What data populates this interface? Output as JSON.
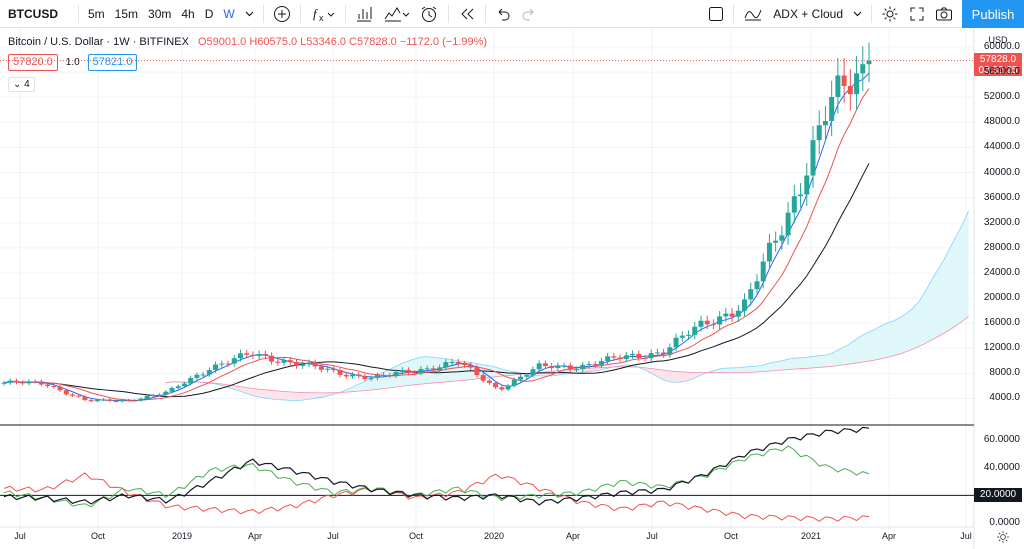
{
  "toolbar": {
    "symbol": "BTCUSD",
    "timeframes": [
      "5m",
      "15m",
      "30m",
      "4h",
      "D",
      "W"
    ],
    "active_timeframe": "W",
    "indicator_template": "ADX + Cloud",
    "publish_label": "Publish"
  },
  "legend": {
    "title": "Bitcoin / U.S. Dollar · 1W · BITFINEX",
    "ohlc": "O59001.0 H60575.0 L53346.0 C57828.0 −1172.0 (−1.99%)",
    "sell_price": "57820.0",
    "spread": "1.0",
    "buy_price": "57821.0",
    "collapsed_indicators": "4"
  },
  "price_axis": {
    "currency": "USD",
    "labels": [
      "60000.0",
      "56000.0",
      "52000.0",
      "48000.0",
      "44000.0",
      "40000.0",
      "36000.0",
      "32000.0",
      "28000.0",
      "24000.0",
      "20000.0",
      "16000.0",
      "12000.0",
      "8000.0",
      "4000.0"
    ],
    "last_price": "57828.0",
    "countdown": "03:32:25"
  },
  "osc_axis": {
    "labels": [
      "60.0000",
      "40.0000",
      "0.0000"
    ],
    "level_tag": "20.0000"
  },
  "time_axis": {
    "labels": [
      "Jul",
      "Oct",
      "2019",
      "Apr",
      "Jul",
      "Oct",
      "2020",
      "Apr",
      "Jul",
      "Oct",
      "2021",
      "Apr",
      "Jul"
    ]
  },
  "colors": {
    "up": "#26a69a",
    "down": "#ef5350",
    "tenkan": "#2962ff",
    "kijun": "#ef5350",
    "slow_ma": "#131722",
    "cloud_bull": "#b2ebf2",
    "cloud_bear": "#f8bbd0",
    "adx": "#131722",
    "di_plus": "#4caf50",
    "di_minus": "#ef5350"
  },
  "chart_data": {
    "type": "line",
    "title": "Bitcoin / U.S. Dollar · 1W · BITFINEX",
    "ylim": [
      0,
      62000
    ],
    "series": [
      {
        "name": "",
        "x": [
          "2018-07",
          "2018-10",
          "2018-12",
          "2019-02",
          "2019-04",
          "2019-06",
          "2019-07",
          "2019-09",
          "2019-10",
          "2019-12",
          "2020-01",
          "2020-02",
          "2020-03",
          "2020-05",
          "2020-07",
          "2020-09",
          "2020-10",
          "2020-11",
          "2020-12",
          "2021-01",
          "2021-02",
          "2021-03"
        ],
        "values": [
          6500,
          6400,
          3600,
          3700,
          5000,
          9000,
          11000,
          9800,
          8200,
          7300,
          8500,
          9800,
          5500,
          9000,
          9200,
          10500,
          11500,
          16000,
          19000,
          33000,
          50000,
          57828
        ]
      }
    ],
    "oscillator": {
      "ylim": [
        0,
        70
      ],
      "level": 20,
      "adx": [
        19,
        18,
        15,
        20,
        16,
        30,
        45,
        38,
        30,
        24,
        20,
        18,
        20,
        15,
        18,
        22,
        24,
        35,
        50,
        60,
        66,
        68
      ],
      "di_plus": [
        22,
        18,
        12,
        25,
        20,
        38,
        42,
        30,
        22,
        25,
        20,
        25,
        18,
        20,
        22,
        30,
        26,
        34,
        47,
        55,
        40,
        35
      ],
      "di_minus": [
        25,
        24,
        35,
        22,
        12,
        10,
        8,
        12,
        20,
        25,
        18,
        22,
        35,
        25,
        15,
        10,
        15,
        10,
        5,
        4,
        3,
        4
      ]
    }
  }
}
